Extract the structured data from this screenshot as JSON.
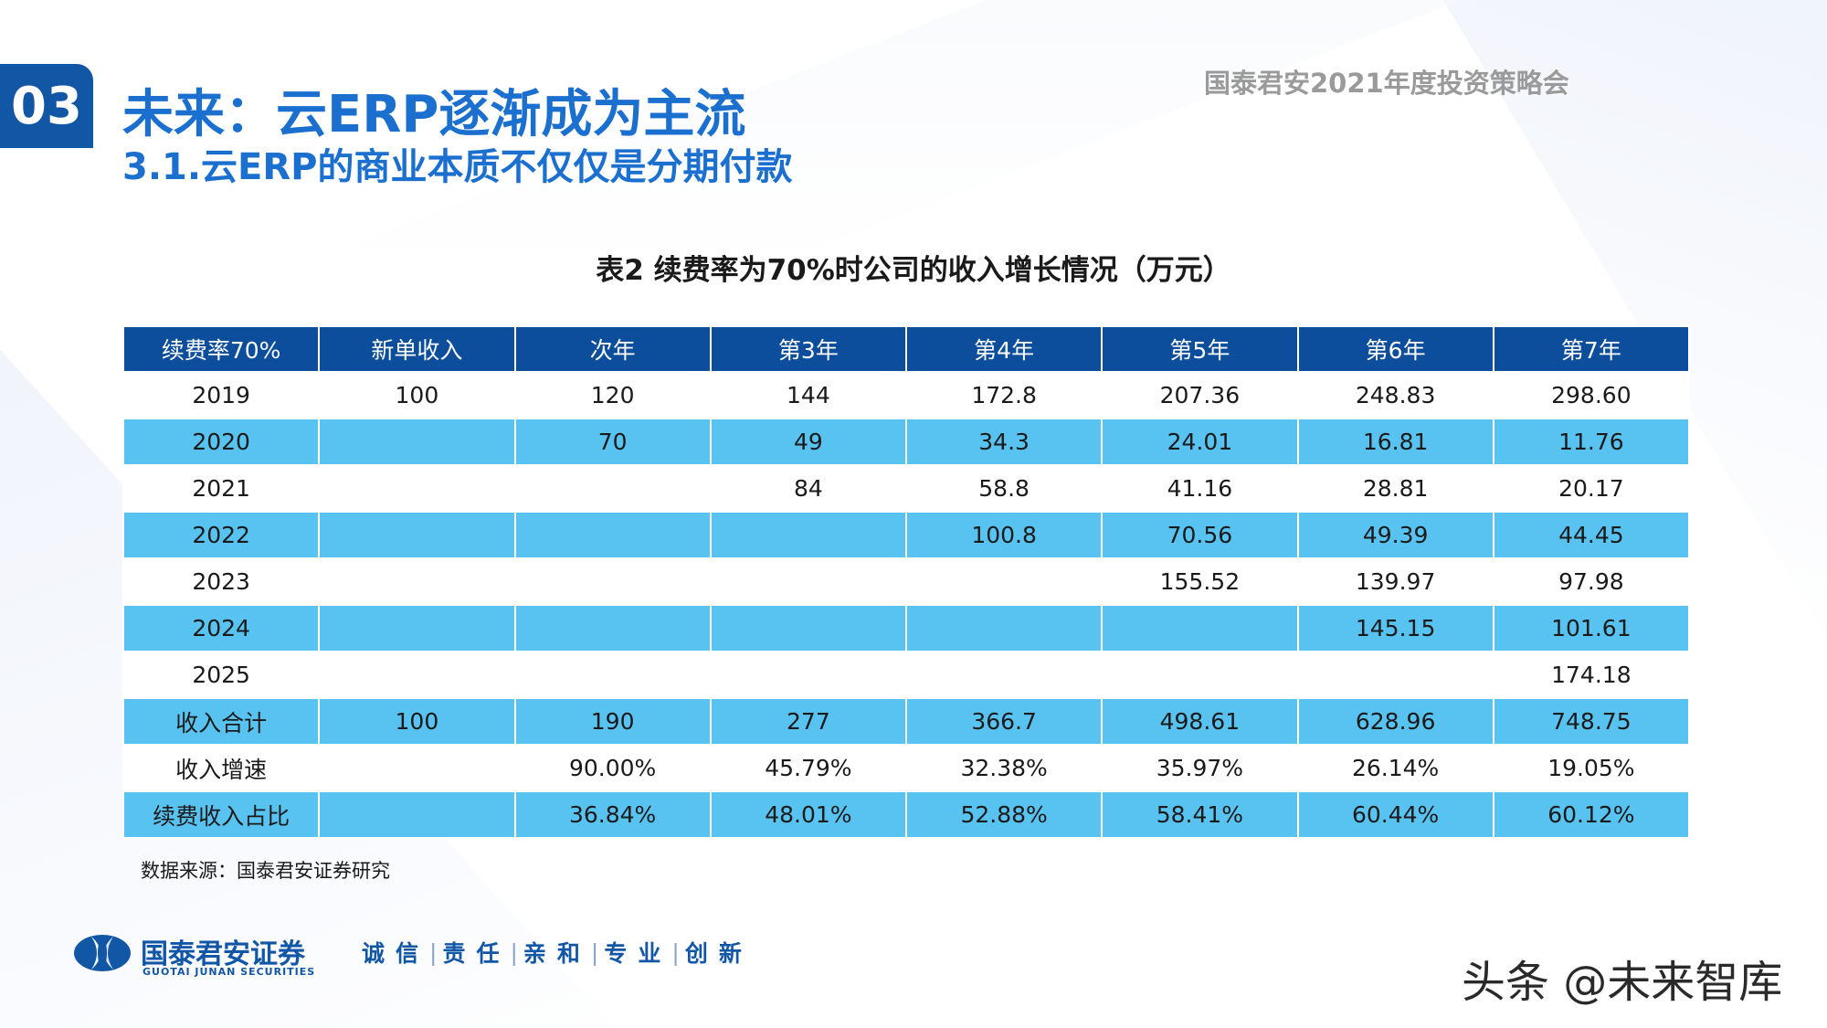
{
  "header": {
    "section_number": "03",
    "title": "未来：云ERP逐渐成为主流",
    "subtitle": "3.1.云ERP的商业本质不仅仅是分期付款",
    "event": "国泰君安2021年度投资策略会"
  },
  "table": {
    "title": "表2 续费率为70%时公司的收入增长情况（万元）",
    "columns": [
      "续费率70%",
      "新单收入",
      "次年",
      "第3年",
      "第4年",
      "第5年",
      "第6年",
      "第7年"
    ],
    "rows": [
      [
        "2019",
        "100",
        "120",
        "144",
        "172.8",
        "207.36",
        "248.83",
        "298.60"
      ],
      [
        "2020",
        "",
        "70",
        "49",
        "34.3",
        "24.01",
        "16.81",
        "11.76"
      ],
      [
        "2021",
        "",
        "",
        "84",
        "58.8",
        "41.16",
        "28.81",
        "20.17"
      ],
      [
        "2022",
        "",
        "",
        "",
        "100.8",
        "70.56",
        "49.39",
        "44.45"
      ],
      [
        "2023",
        "",
        "",
        "",
        "",
        "155.52",
        "139.97",
        "97.98"
      ],
      [
        "2024",
        "",
        "",
        "",
        "",
        "",
        "145.15",
        "101.61"
      ],
      [
        "2025",
        "",
        "",
        "",
        "",
        "",
        "",
        "174.18"
      ],
      [
        "收入合计",
        "100",
        "190",
        "277",
        "366.7",
        "498.61",
        "628.96",
        "748.75"
      ],
      [
        "收入增速",
        "",
        "90.00%",
        "45.79%",
        "32.38%",
        "35.97%",
        "26.14%",
        "19.05%"
      ],
      [
        "续费收入占比",
        "",
        "36.84%",
        "48.01%",
        "52.88%",
        "58.41%",
        "60.44%",
        "60.12%"
      ]
    ],
    "source": "数据来源：国泰君安证券研究"
  },
  "footer": {
    "logo_cn": "国泰君安证券",
    "logo_en": "GUOTAI JUNAN SECURITIES",
    "slogan": [
      "诚信",
      "责任",
      "亲和",
      "专业",
      "创新"
    ],
    "separator": "|",
    "watermark": "头条 @未来智库"
  },
  "colors": {
    "brand_blue": "#1256a6",
    "title_blue": "#1a6fcf",
    "header_row": "#0c4e9b",
    "band_row": "#58c2f0"
  }
}
